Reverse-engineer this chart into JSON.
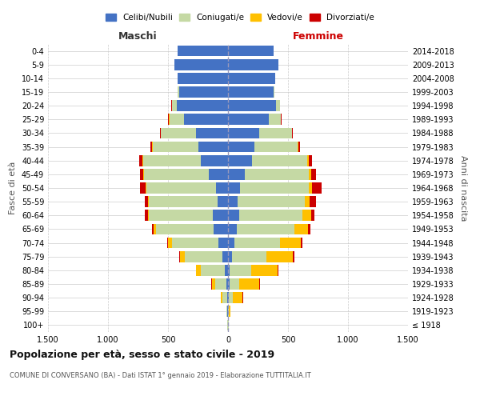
{
  "age_groups": [
    "100+",
    "95-99",
    "90-94",
    "85-89",
    "80-84",
    "75-79",
    "70-74",
    "65-69",
    "60-64",
    "55-59",
    "50-54",
    "45-49",
    "40-44",
    "35-39",
    "30-34",
    "25-29",
    "20-24",
    "15-19",
    "10-14",
    "5-9",
    "0-4"
  ],
  "birth_years": [
    "≤ 1918",
    "1919-1923",
    "1924-1928",
    "1929-1933",
    "1934-1938",
    "1939-1943",
    "1944-1948",
    "1949-1953",
    "1954-1958",
    "1959-1963",
    "1964-1968",
    "1969-1973",
    "1974-1978",
    "1979-1983",
    "1984-1988",
    "1989-1993",
    "1994-1998",
    "1999-2003",
    "2004-2008",
    "2009-2013",
    "2014-2018"
  ],
  "males": {
    "celibi": [
      2,
      5,
      10,
      15,
      25,
      50,
      80,
      120,
      130,
      90,
      100,
      160,
      230,
      250,
      270,
      370,
      430,
      410,
      420,
      450,
      420
    ],
    "coniugati": [
      2,
      8,
      40,
      90,
      200,
      310,
      390,
      480,
      530,
      570,
      580,
      540,
      480,
      380,
      290,
      120,
      40,
      10,
      0,
      0,
      0
    ],
    "vedovi": [
      0,
      2,
      10,
      30,
      40,
      40,
      30,
      20,
      10,
      5,
      5,
      5,
      3,
      2,
      2,
      2,
      0,
      0,
      0,
      0,
      0
    ],
    "divorziati": [
      0,
      0,
      2,
      5,
      5,
      8,
      10,
      15,
      25,
      30,
      50,
      30,
      25,
      15,
      5,
      5,
      2,
      0,
      0,
      0,
      0
    ]
  },
  "females": {
    "nubili": [
      2,
      3,
      8,
      10,
      15,
      30,
      55,
      75,
      90,
      80,
      100,
      140,
      200,
      220,
      260,
      340,
      400,
      380,
      390,
      420,
      380
    ],
    "coniugate": [
      2,
      5,
      35,
      80,
      175,
      290,
      380,
      480,
      530,
      560,
      570,
      530,
      460,
      360,
      270,
      100,
      30,
      8,
      0,
      0,
      0
    ],
    "vedove": [
      3,
      15,
      80,
      170,
      220,
      220,
      170,
      110,
      70,
      40,
      30,
      20,
      10,
      5,
      3,
      2,
      0,
      0,
      0,
      0,
      0
    ],
    "divorziate": [
      0,
      0,
      2,
      5,
      8,
      10,
      15,
      20,
      30,
      50,
      80,
      40,
      30,
      15,
      5,
      5,
      2,
      0,
      0,
      0,
      0
    ]
  },
  "color_celibi": "#4472c4",
  "color_coniugati": "#c5d9a4",
  "color_vedovi": "#ffc000",
  "color_divorziati": "#cc0000",
  "xlim": 1500,
  "title": "Popolazione per età, sesso e stato civile - 2019",
  "subtitle": "COMUNE DI CONVERSANO (BA) - Dati ISTAT 1° gennaio 2019 - Elaborazione TUTTITALIA.IT",
  "ylabel_left": "Fasce di età",
  "ylabel_right": "Anni di nascita",
  "xlabel_left": "Maschi",
  "xlabel_right": "Femmine",
  "bar_height": 0.8
}
